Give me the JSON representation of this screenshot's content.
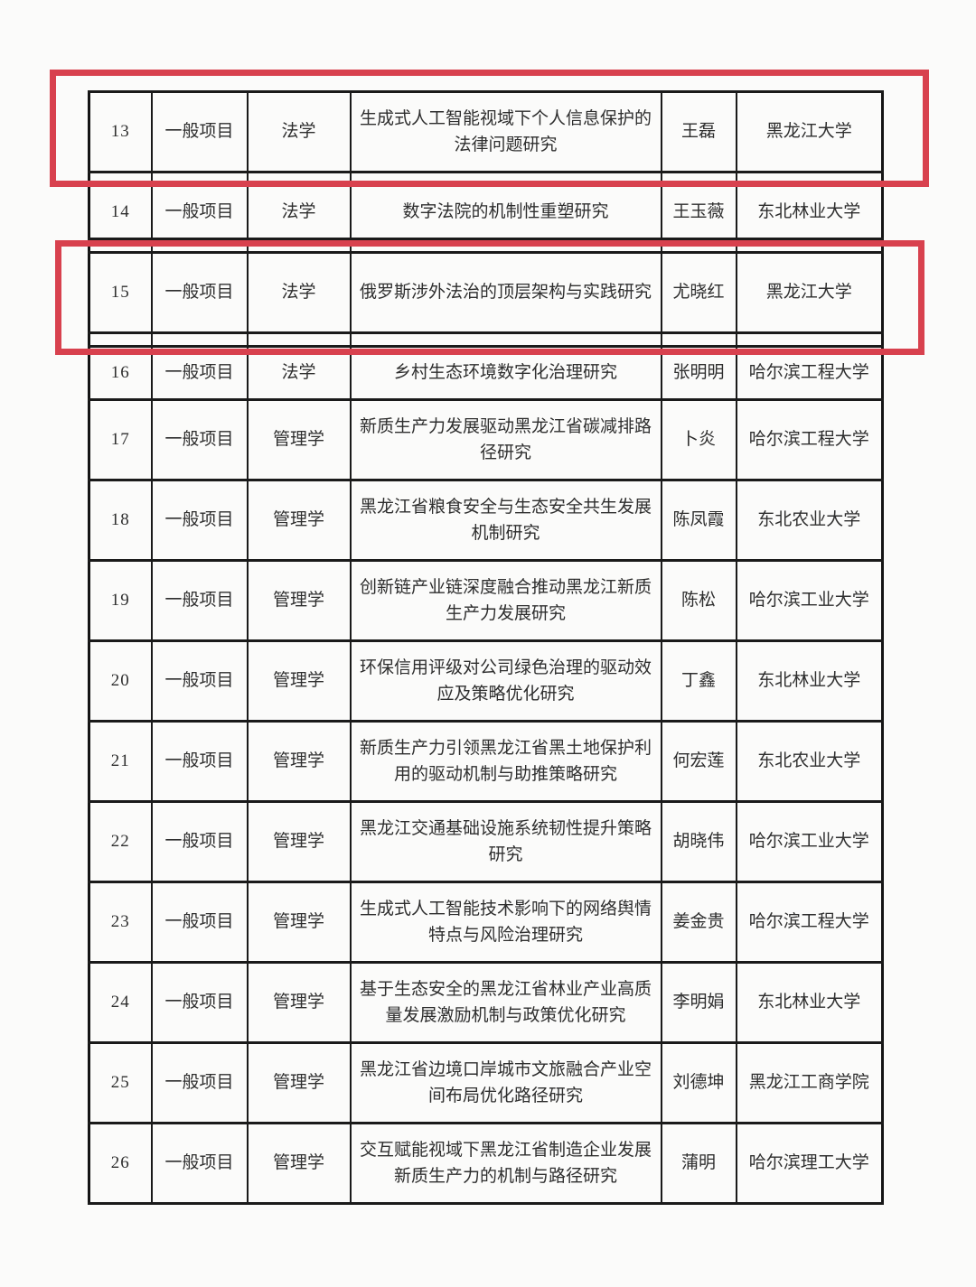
{
  "page": {
    "background": "#fbfbfa",
    "description_visible_text_only": true
  },
  "annotations": {
    "highlight_color": "#d8414e",
    "boxes": [
      {
        "name": "highlight-box-row-13",
        "highlights_row_no": "13"
      },
      {
        "name": "highlight-box-row-15",
        "highlights_row_no": "15"
      }
    ]
  },
  "table": {
    "rows": [
      {
        "no": "13",
        "category": "一般项目",
        "discipline": "法学",
        "title": "生成式人工智能视域下个人信息保护的法律问题研究",
        "leader": "王磊",
        "institution": "黑龙江大学",
        "highlighted": true,
        "spacer_after": true
      },
      {
        "no": "14",
        "category": "一般项目",
        "discipline": "法学",
        "title": "数字法院的机制性重塑研究",
        "leader": "王玉薇",
        "institution": "东北林业大学",
        "highlighted": false,
        "spacer_after": true
      },
      {
        "no": "15",
        "category": "一般项目",
        "discipline": "法学",
        "title": "俄罗斯涉外法治的顶层架构与实践研究",
        "leader": "尤晓红",
        "institution": "黑龙江大学",
        "highlighted": true,
        "spacer_after": true
      },
      {
        "no": "16",
        "category": "一般项目",
        "discipline": "法学",
        "title": "乡村生态环境数字化治理研究",
        "leader": "张明明",
        "institution": "哈尔滨工程大学",
        "highlighted": false,
        "spacer_after": false
      },
      {
        "no": "17",
        "category": "一般项目",
        "discipline": "管理学",
        "title": "新质生产力发展驱动黑龙江省碳减排路径研究",
        "leader": "卜炎",
        "institution": "哈尔滨工程大学",
        "highlighted": false,
        "spacer_after": false
      },
      {
        "no": "18",
        "category": "一般项目",
        "discipline": "管理学",
        "title": "黑龙江省粮食安全与生态安全共生发展机制研究",
        "leader": "陈凤霞",
        "institution": "东北农业大学",
        "highlighted": false,
        "spacer_after": false
      },
      {
        "no": "19",
        "category": "一般项目",
        "discipline": "管理学",
        "title": "创新链产业链深度融合推动黑龙江新质生产力发展研究",
        "leader": "陈松",
        "institution": "哈尔滨工业大学",
        "highlighted": false,
        "spacer_after": false
      },
      {
        "no": "20",
        "category": "一般项目",
        "discipline": "管理学",
        "title": "环保信用评级对公司绿色治理的驱动效应及策略优化研究",
        "leader": "丁鑫",
        "institution": "东北林业大学",
        "highlighted": false,
        "spacer_after": false
      },
      {
        "no": "21",
        "category": "一般项目",
        "discipline": "管理学",
        "title": "新质生产力引领黑龙江省黑土地保护利用的驱动机制与助推策略研究",
        "leader": "何宏莲",
        "institution": "东北农业大学",
        "highlighted": false,
        "spacer_after": false
      },
      {
        "no": "22",
        "category": "一般项目",
        "discipline": "管理学",
        "title": "黑龙江交通基础设施系统韧性提升策略研究",
        "leader": "胡晓伟",
        "institution": "哈尔滨工业大学",
        "highlighted": false,
        "spacer_after": false
      },
      {
        "no": "23",
        "category": "一般项目",
        "discipline": "管理学",
        "title": "生成式人工智能技术影响下的网络舆情特点与风险治理研究",
        "leader": "姜金贵",
        "institution": "哈尔滨工程大学",
        "highlighted": false,
        "spacer_after": false
      },
      {
        "no": "24",
        "category": "一般项目",
        "discipline": "管理学",
        "title": "基于生态安全的黑龙江省林业产业高质量发展激励机制与政策优化研究",
        "leader": "李明娟",
        "institution": "东北林业大学",
        "highlighted": false,
        "spacer_after": false
      },
      {
        "no": "25",
        "category": "一般项目",
        "discipline": "管理学",
        "title": "黑龙江省边境口岸城市文旅融合产业空间布局优化路径研究",
        "leader": "刘德坤",
        "institution": "黑龙江工商学院",
        "highlighted": false,
        "spacer_after": false
      },
      {
        "no": "26",
        "category": "一般项目",
        "discipline": "管理学",
        "title": "交互赋能视域下黑龙江省制造企业发展新质生产力的机制与路径研究",
        "leader": "蒲明",
        "institution": "哈尔滨理工大学",
        "highlighted": false,
        "spacer_after": false
      }
    ]
  }
}
